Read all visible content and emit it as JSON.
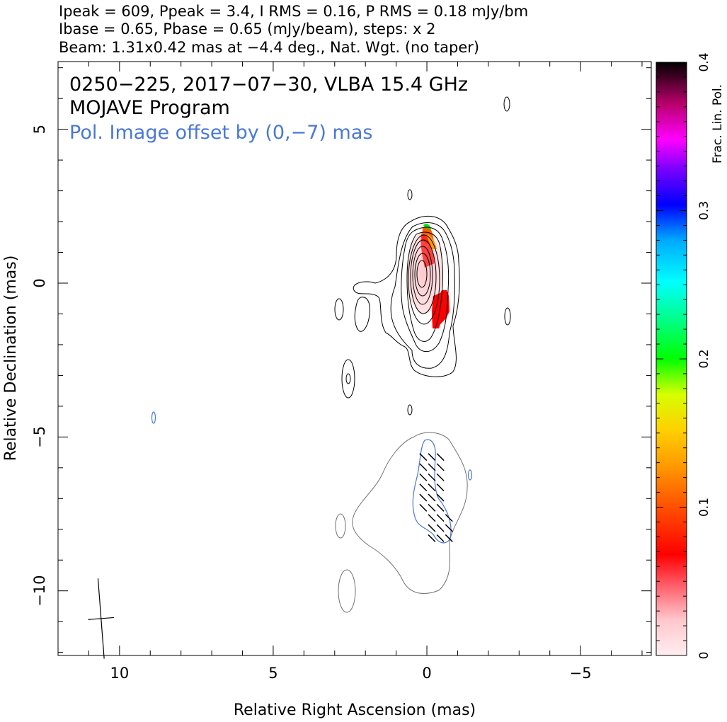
{
  "header": {
    "line1": "Ipeak = 609, Ppeak = 3.4, I RMS = 0.16, P RMS = 0.18 mJy/bm",
    "line2": "Ibase = 0.65, Pbase = 0.65 (mJy/beam), steps: x 2",
    "line3": "Beam: 1.31x0.42 mas at −4.4 deg., Nat. Wgt. (no taper)"
  },
  "annotations": {
    "source": "0250−225, 2017−07−30, VLBA 15.4 GHz",
    "program": "MOJAVE Program",
    "pol_offset": "Pol. Image offset by (0,−7) mas"
  },
  "colors": {
    "pol_contour": "#4a78d8",
    "offset_text": "#4a78d8",
    "contour": "#000000",
    "pol_base_contour": "#808080"
  },
  "chart_data": {
    "type": "contour",
    "xlabel": "Relative Right Ascension (mas)",
    "ylabel": "Relative Declination (mas)",
    "xlim": [
      12,
      -7.3
    ],
    "ylim": [
      -12.1,
      7.2
    ],
    "x_ticks": [
      10,
      5,
      0,
      -5
    ],
    "x_tick_labels": [
      "10",
      "5",
      "0",
      "−5"
    ],
    "y_ticks": [
      5,
      0,
      -5,
      -10
    ],
    "y_tick_labels": [
      "5",
      "0",
      "−5",
      "−10"
    ],
    "colorbar": {
      "label": "Frac. Lin. Pol.",
      "range": [
        0,
        0.4
      ],
      "ticks": [
        0,
        0.1,
        0.2,
        0.3,
        0.4
      ],
      "tick_labels": [
        "0",
        "0.1",
        "0.2",
        "0.3",
        "0.4"
      ]
    },
    "peak_position": [
      0,
      0.2
    ],
    "beam": {
      "major_mas": 1.31,
      "minor_mas": 0.42,
      "pa_deg": -4.4,
      "center": [
        10.6,
        -10.9
      ]
    },
    "evpa_region": {
      "ra_range": [
        0.4,
        -0.9
      ],
      "dec_range": [
        -8.6,
        -5.4
      ],
      "typical_angle_deg": -45
    }
  }
}
